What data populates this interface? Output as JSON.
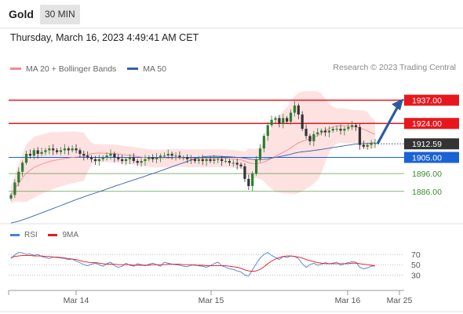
{
  "header": {
    "title": "Gold",
    "timeframe": "30 MIN",
    "datetime": "Thursday, March 16, 2023 4:49:41 AM CET"
  },
  "legend": {
    "ma20_bb": "MA 20 + Bollinger Bands",
    "ma50": "MA 50",
    "copyright": "Research © 2023 Trading Central"
  },
  "rsi_legend": {
    "rsi": "RSI",
    "ma9": "9MA"
  },
  "colors": {
    "resistance": "#e8171c",
    "support": "#3a8b2d",
    "pivot": "#1a62d6",
    "price_tag": "#333333",
    "arrow": "#2c5aa0",
    "bollinger_fill": "#fdd6d6",
    "ma20": "#f08c8c",
    "ma50": "#3a5fa8",
    "rsi_line": "#4a7fd8",
    "rsi_ma": "#e8171c",
    "candle_up": "#2e7d32",
    "candle_down": "#333333"
  },
  "chart_data": {
    "type": "candlestick",
    "y_range": [
      1871,
      1950
    ],
    "levels": [
      {
        "label": "1937.00",
        "value": 1937.0,
        "kind": "resistance"
      },
      {
        "label": "1924.00",
        "value": 1924.0,
        "kind": "resistance"
      },
      {
        "label": "1912.59",
        "value": 1912.59,
        "kind": "current"
      },
      {
        "label": "1905.00",
        "value": 1905.0,
        "kind": "pivot"
      },
      {
        "label": "1896.00",
        "value": 1896.0,
        "kind": "support"
      },
      {
        "label": "1886.00",
        "value": 1886.0,
        "kind": "support"
      }
    ],
    "x_ticks": [
      "Mar 14",
      "Mar 15",
      "Mar 16",
      "Mar 25"
    ],
    "projection": {
      "from": 1912.6,
      "to": 1937.0
    },
    "closes": [
      1884,
      1891,
      1897,
      1902,
      1907,
      1906,
      1909,
      1907,
      1908,
      1909,
      1910,
      1909,
      1908,
      1909,
      1910,
      1909,
      1910,
      1909,
      1907,
      1906,
      1905,
      1904,
      1903,
      1904,
      1905,
      1906,
      1907,
      1905,
      1904,
      1903,
      1904,
      1905,
      1903,
      1902,
      1903,
      1904,
      1905,
      1904,
      1905,
      1906,
      1906,
      1907,
      1906,
      1906,
      1905,
      1905,
      1904,
      1904,
      1903,
      1904,
      1903,
      1904,
      1903,
      1904,
      1904,
      1903,
      1903,
      1902,
      1902,
      1901,
      1900,
      1893,
      1889,
      1896,
      1904,
      1910,
      1917,
      1923,
      1926,
      1927,
      1924,
      1927,
      1925,
      1930,
      1934,
      1929,
      1921,
      1917,
      1914,
      1918,
      1919,
      1920,
      1919,
      1920,
      1921,
      1921,
      1920,
      1921,
      1922,
      1923,
      1922,
      1912,
      1911,
      1912,
      1913,
      1913
    ],
    "rsi": {
      "levels": [
        70,
        50,
        30
      ],
      "rsi_values": [
        62,
        69,
        74,
        73,
        70,
        71,
        68,
        70,
        66,
        64,
        62,
        65,
        64,
        63,
        62,
        60,
        61,
        57,
        54,
        50,
        48,
        51,
        53,
        50,
        47,
        52,
        55,
        48,
        45,
        47,
        53,
        49,
        47,
        52,
        50,
        48,
        51,
        53,
        50,
        47,
        55,
        53,
        51,
        50,
        49,
        47,
        46,
        49,
        50,
        48,
        47,
        45,
        48,
        52,
        55,
        48,
        45,
        42,
        41,
        38,
        36,
        30,
        28,
        40,
        52,
        63,
        70,
        74,
        68,
        64,
        60,
        66,
        64,
        67,
        66,
        62,
        52,
        45,
        50,
        53,
        49,
        51,
        54,
        52,
        53,
        55,
        49,
        52,
        54,
        56,
        55,
        45,
        42,
        44,
        47,
        48
      ],
      "ma_values": [
        64,
        66,
        67,
        68,
        68,
        68,
        67,
        67,
        67,
        66,
        66,
        65,
        65,
        64,
        63,
        62,
        61,
        60,
        58,
        56,
        55,
        54,
        54,
        53,
        52,
        51,
        51,
        51,
        50,
        50,
        50,
        50,
        49,
        49,
        49,
        49,
        49,
        50,
        50,
        50,
        50,
        51,
        51,
        51,
        51,
        50,
        50,
        50,
        49,
        49,
        49,
        48,
        48,
        48,
        48,
        48,
        48,
        47,
        46,
        45,
        43,
        40,
        38,
        37,
        38,
        41,
        46,
        52,
        57,
        61,
        64,
        66,
        67,
        67,
        66,
        65,
        63,
        60,
        58,
        56,
        54,
        53,
        52,
        52,
        52,
        52,
        52,
        52,
        52,
        53,
        53,
        52,
        51,
        50,
        49,
        48
      ]
    }
  }
}
